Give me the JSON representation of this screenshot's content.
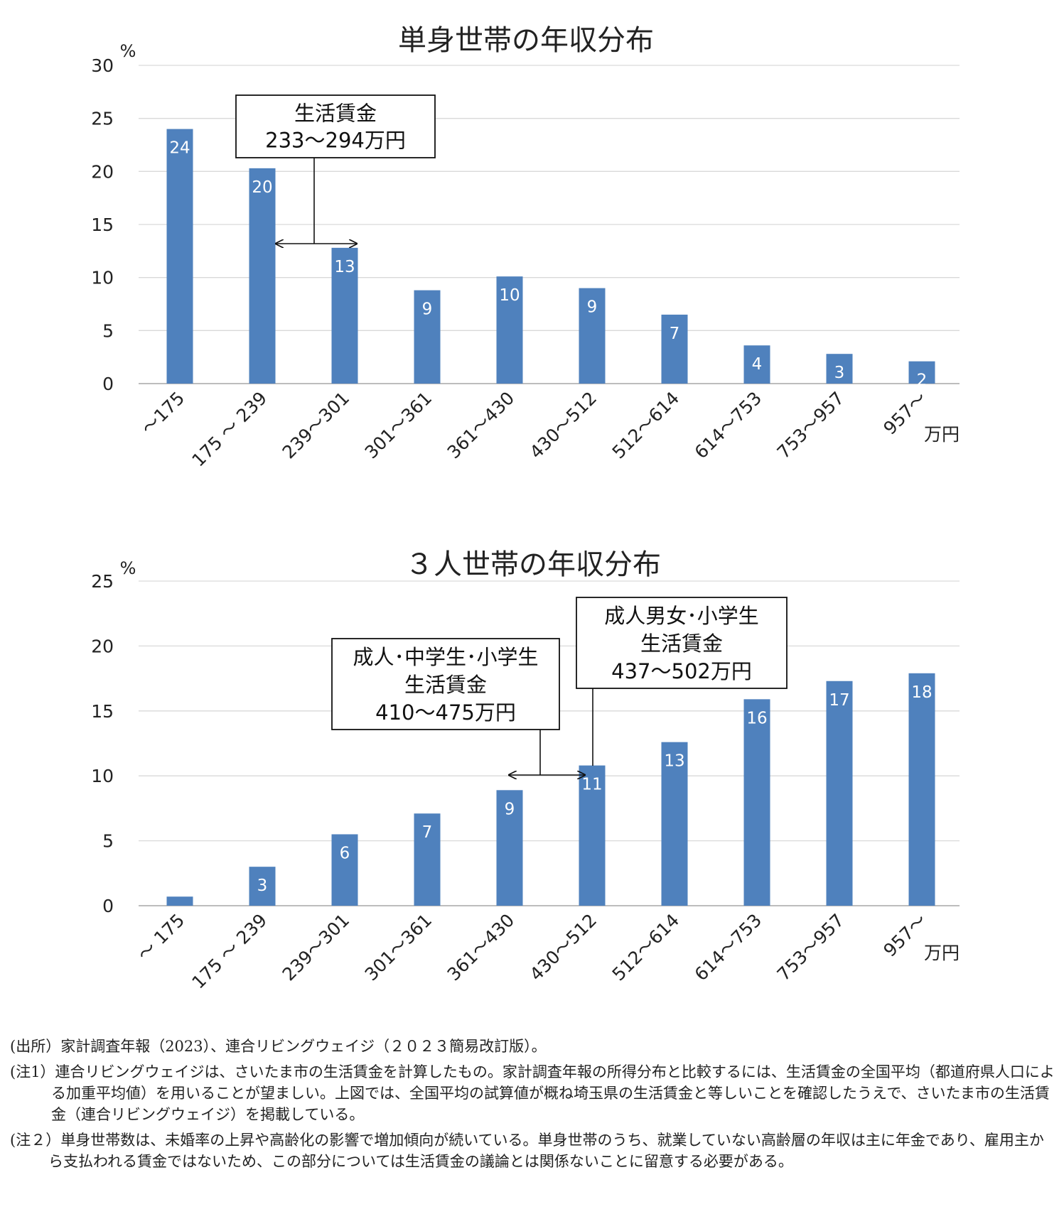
{
  "chart_data": [
    {
      "type": "bar",
      "title": "単身世帯の年収分布",
      "y_unit": "%",
      "x_unit": "万円",
      "ylim": [
        0,
        30
      ],
      "yticks": [
        0,
        5,
        10,
        15,
        20,
        25,
        30
      ],
      "grid": true,
      "categories": [
        "～175",
        "175 ～ 239",
        "239～301",
        "301～361",
        "361～430",
        "430～512",
        "512～614",
        "614～753",
        "753～957",
        "957～"
      ],
      "values": [
        24,
        20.3,
        12.8,
        8.8,
        10.1,
        9,
        6.5,
        3.6,
        2.8,
        2.1
      ],
      "data_labels": [
        "24",
        "20",
        "13",
        "9",
        "10",
        "9",
        "7",
        "4",
        "3",
        "2"
      ],
      "bar_color": "#4f81bd",
      "annotations": [
        {
          "lines": [
            "生活賃金",
            "233～294万円"
          ]
        }
      ]
    },
    {
      "type": "bar",
      "title": "３人世帯の年収分布",
      "y_unit": "%",
      "x_unit": "万円",
      "ylim": [
        0,
        25
      ],
      "yticks": [
        0,
        5,
        10,
        15,
        20,
        25
      ],
      "grid": true,
      "categories": [
        "～ 175",
        "175 ～ 239",
        "239～301",
        "301～361",
        "361～430",
        "430～512",
        "512～614",
        "614～753",
        "753～957",
        "957～"
      ],
      "values": [
        0.7,
        3,
        5.5,
        7.1,
        8.9,
        10.8,
        12.6,
        15.9,
        17.3,
        17.9
      ],
      "data_labels": [
        "",
        "3",
        "6",
        "7",
        "9",
        "11",
        "13",
        "16",
        "17",
        "18"
      ],
      "bar_color": "#4f81bd",
      "annotations": [
        {
          "lines": [
            "成人･中学生･小学生",
            "生活賃金",
            "410～475万円"
          ]
        },
        {
          "lines": [
            "成人男女･小学生",
            "生活賃金",
            "437～502万円"
          ]
        }
      ]
    }
  ],
  "notes": {
    "source": "(出所）家計調査年報（2023）、連合リビングウェイジ（２０２３簡易改訂版）。",
    "note1": "(注1）連合リビングウェイジは、さいたま市の生活賃金を計算したもの。家計調査年報の所得分布と比較するには、生活賃金の全国平均（都道府県人口による加重平均値）を用いることが望ましい。上図では、全国平均の試算値が概ね埼玉県の生活賃金と等しいことを確認したうえで、さいたま市の生活賃金（連合リビングウェイジ）を掲載している。",
    "note2": "(注２）単身世帯数は、未婚率の上昇や高齢化の影響で増加傾向が続いている。単身世帯のうち、就業していない高齢層の年収は主に年金であり、雇用主から支払われる賃金ではないため、この部分については生活賃金の議論とは関係ないことに留意する必要がある。"
  }
}
